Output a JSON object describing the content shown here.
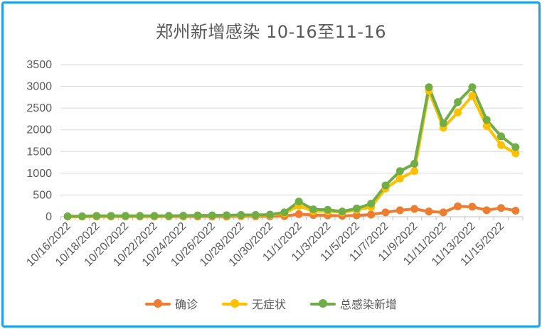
{
  "chart_data": {
    "type": "line",
    "title": "郑州新增感染 10-16至11-16",
    "xlabel": "",
    "ylabel": "",
    "ylim": [
      0,
      3500
    ],
    "yticks": [
      0,
      500,
      1000,
      1500,
      2000,
      2500,
      3000,
      3500
    ],
    "grid": true,
    "legend_position": "bottom",
    "x": [
      "10/16/2022",
      "10/17/2022",
      "10/18/2022",
      "10/19/2022",
      "10/20/2022",
      "10/21/2022",
      "10/22/2022",
      "10/23/2022",
      "10/24/2022",
      "10/25/2022",
      "10/26/2022",
      "10/27/2022",
      "10/28/2022",
      "10/29/2022",
      "10/30/2022",
      "10/31/2022",
      "11/1/2022",
      "11/2/2022",
      "11/3/2022",
      "11/4/2022",
      "11/5/2022",
      "11/6/2022",
      "11/7/2022",
      "11/8/2022",
      "11/9/2022",
      "11/10/2022",
      "11/11/2022",
      "11/12/2022",
      "11/13/2022",
      "11/14/2022",
      "11/15/2022",
      "11/16/2022"
    ],
    "xtick_labels": [
      "10/16/2022",
      "10/18/2022",
      "10/20/2022",
      "10/22/2022",
      "10/24/2022",
      "10/26/2022",
      "10/28/2022",
      "10/30/2022",
      "11/1/2022",
      "11/3/2022",
      "11/5/2022",
      "11/7/2022",
      "11/9/2022",
      "11/11/2022",
      "11/13/2022",
      "11/15/2022"
    ],
    "series": [
      {
        "name": "确诊",
        "color": "#ed7d31",
        "values": [
          5,
          5,
          5,
          5,
          5,
          5,
          5,
          5,
          5,
          5,
          5,
          5,
          10,
          10,
          10,
          15,
          60,
          40,
          30,
          20,
          30,
          50,
          100,
          150,
          180,
          120,
          100,
          240,
          230,
          150,
          200,
          140
        ]
      },
      {
        "name": "无症状",
        "color": "#ffc000",
        "values": [
          5,
          5,
          10,
          10,
          10,
          10,
          10,
          10,
          15,
          20,
          20,
          25,
          25,
          30,
          40,
          80,
          250,
          130,
          130,
          100,
          160,
          220,
          650,
          880,
          1050,
          2900,
          2050,
          2400,
          2780,
          2090,
          1650,
          1460
        ]
      },
      {
        "name": "总感染新增",
        "color": "#70ad47",
        "values": [
          10,
          10,
          20,
          20,
          20,
          20,
          20,
          20,
          25,
          30,
          30,
          35,
          40,
          40,
          50,
          100,
          350,
          170,
          160,
          120,
          190,
          300,
          720,
          1050,
          1220,
          2980,
          2150,
          2640,
          2980,
          2230,
          1850,
          1600
        ]
      }
    ]
  }
}
